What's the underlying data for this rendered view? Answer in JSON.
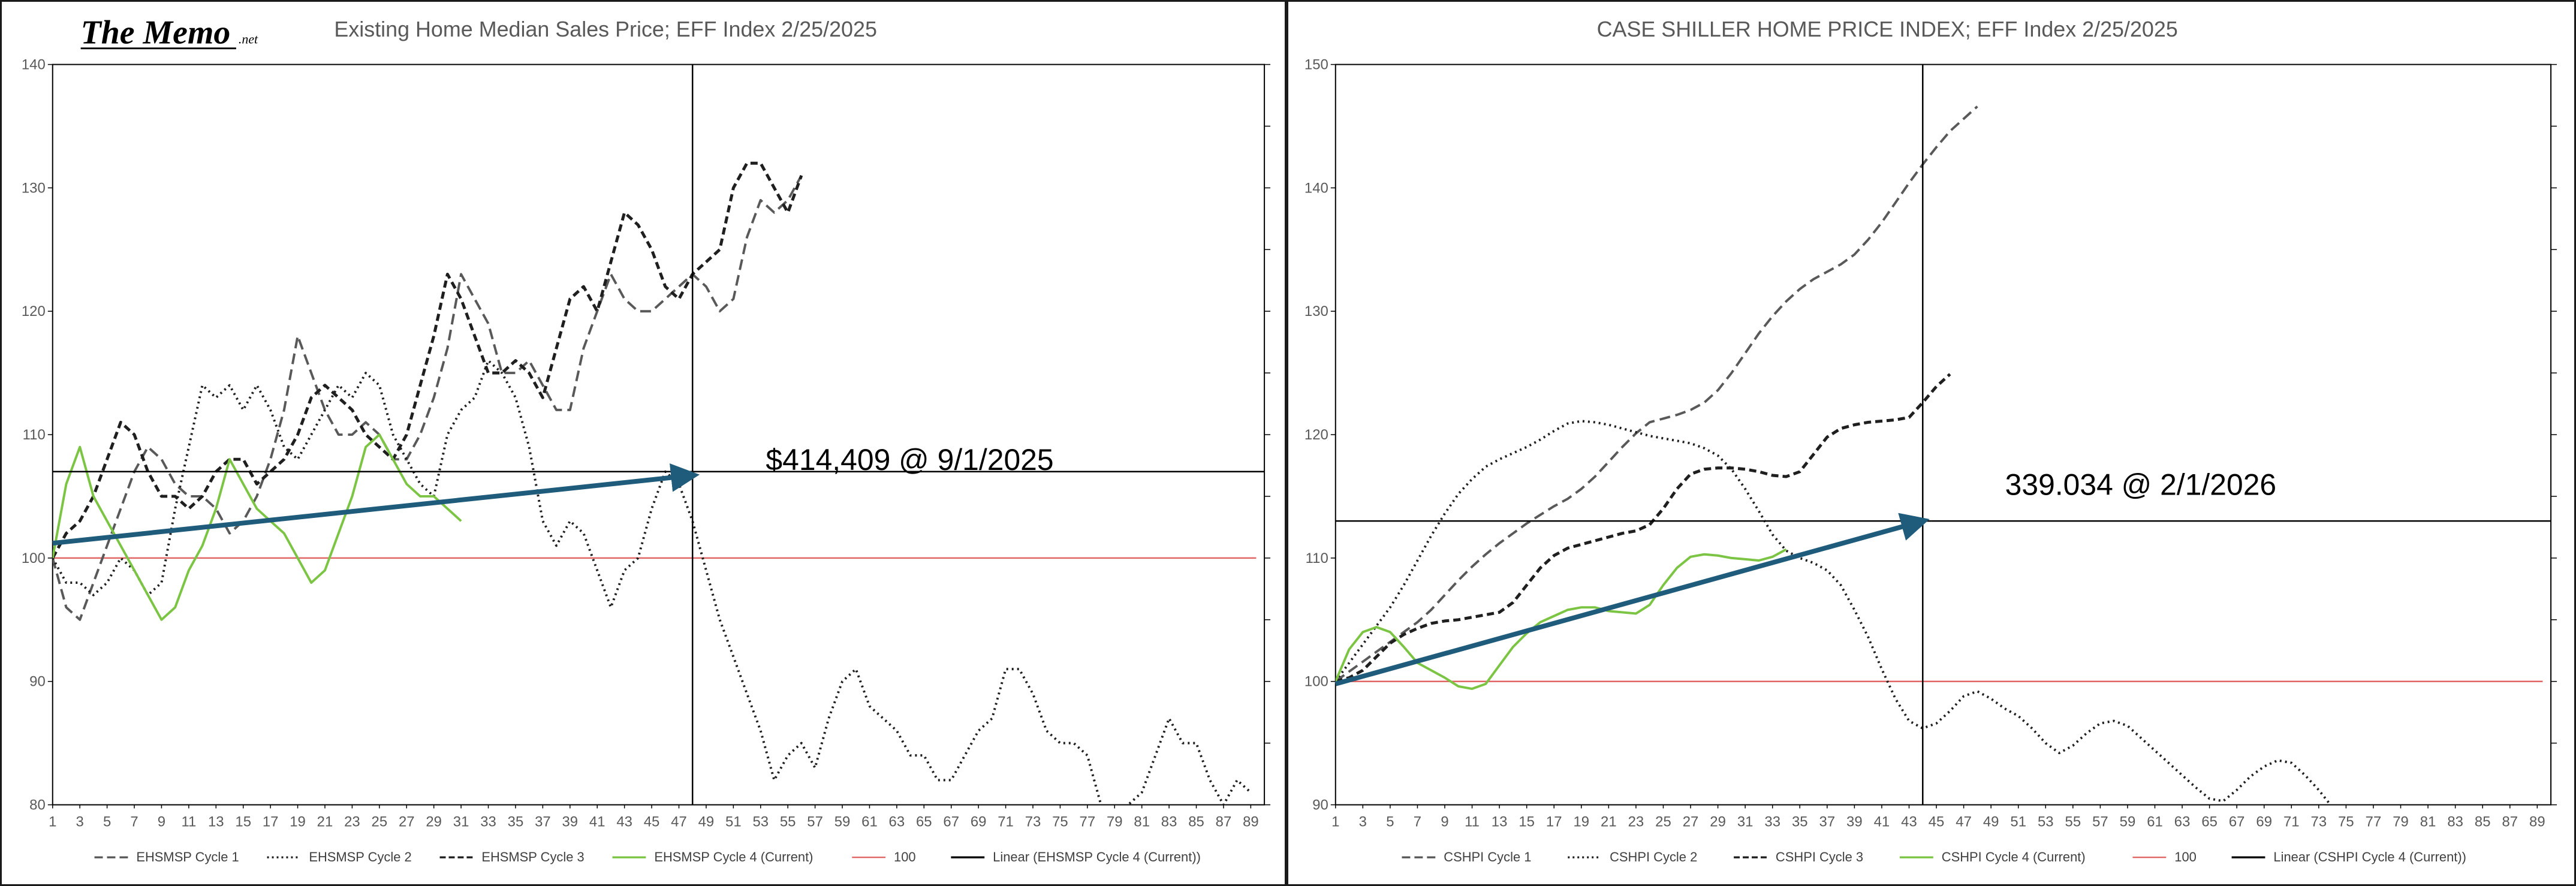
{
  "logo": {
    "main": "The Memo",
    "sub": ".net"
  },
  "colors": {
    "cycle_dark": "#595959",
    "cycle_black": "#1f1f1f",
    "current_green": "#7cc443",
    "baseline_red": "#e06666",
    "linear_black": "#000000",
    "arrow_blue": "#1f5b7a"
  },
  "chart_data": [
    {
      "type": "line",
      "title": "Existing Home Median Sales Price; EFF Index 2/25/2025",
      "xlabel": "",
      "ylabel": "",
      "xlim": [
        1,
        90
      ],
      "ylim": [
        80,
        140
      ],
      "xticks": [
        1,
        3,
        5,
        7,
        9,
        11,
        13,
        15,
        17,
        19,
        21,
        23,
        25,
        27,
        29,
        31,
        33,
        35,
        37,
        39,
        41,
        43,
        45,
        47,
        49,
        51,
        53,
        55,
        57,
        59,
        61,
        63,
        65,
        67,
        69,
        71,
        73,
        75,
        77,
        79,
        81,
        83,
        85,
        87,
        89
      ],
      "yticks": [
        80,
        90,
        100,
        110,
        120,
        130,
        140
      ],
      "grid": false,
      "legend_position": "bottom",
      "series": [
        {
          "name": "EHSMSP Cycle 1",
          "dash": "dashed",
          "values": [
            100,
            96,
            95,
            98,
            101,
            104,
            107,
            109,
            108,
            106,
            105,
            105,
            104,
            102,
            103,
            105,
            108,
            112,
            118,
            115,
            112,
            110,
            110,
            111,
            110,
            108,
            108,
            110,
            113,
            117,
            123,
            121,
            119,
            115,
            115,
            116,
            114,
            112,
            112,
            117,
            120,
            123,
            121,
            120,
            120,
            121,
            122,
            123,
            122,
            120,
            121,
            126,
            129,
            128,
            129,
            131
          ]
        },
        {
          "name": "EHSMSP Cycle 2",
          "dash": "dotted",
          "values": [
            100,
            98,
            98,
            97,
            98,
            100,
            99,
            97,
            98,
            104,
            109,
            114,
            113,
            114,
            112,
            114,
            112,
            109,
            108,
            110,
            112,
            114,
            113,
            115,
            114,
            110,
            108,
            106,
            105,
            110,
            112,
            113,
            116,
            115,
            113,
            109,
            103,
            101,
            103,
            102,
            99,
            96,
            99,
            100,
            104,
            107,
            106,
            103,
            99,
            95,
            92,
            89,
            86,
            82,
            84,
            85,
            83,
            87,
            90,
            91,
            88,
            87,
            86,
            84,
            84,
            82,
            82,
            84,
            86,
            87,
            91,
            91,
            89,
            86,
            85,
            85,
            84,
            80,
            79,
            80,
            81,
            84,
            87,
            85,
            85,
            82,
            80,
            82,
            81
          ]
        },
        {
          "name": "EHSMSP Cycle 3",
          "dash": "dashed",
          "values": [
            100,
            102,
            103,
            105,
            108,
            111,
            110,
            107,
            105,
            105,
            104,
            105,
            107,
            108,
            108,
            106,
            107,
            108,
            110,
            113,
            114,
            113,
            112,
            110,
            109,
            108,
            110,
            114,
            118,
            123,
            121,
            118,
            115,
            115,
            116,
            115,
            113,
            117,
            121,
            122,
            120,
            124,
            128,
            127,
            125,
            122,
            121,
            123,
            124,
            125,
            130,
            132,
            132,
            130,
            128,
            131
          ]
        },
        {
          "name": "EHSMSP Cycle 4 (Current)",
          "dash": "solid",
          "values": [
            100,
            106,
            109,
            105,
            103,
            101,
            99,
            97,
            95,
            96,
            99,
            101,
            104,
            108,
            106,
            104,
            103,
            102,
            100,
            98,
            99,
            102,
            105,
            109,
            110,
            108,
            106,
            105,
            105,
            104,
            103
          ]
        },
        {
          "name": "100",
          "dash": "solid",
          "values": [
            100,
            100
          ]
        },
        {
          "name": "Linear (EHSMSP Cycle 4 (Current))",
          "dash": "solid",
          "values": [
            107,
            107
          ]
        }
      ],
      "annotations": [
        {
          "text": "$414,409 @ 9/1/2025",
          "x": 48,
          "y": 107
        }
      ],
      "trend_arrow": {
        "from": [
          1,
          101.2
        ],
        "to": [
          48,
          106.7
        ]
      },
      "vline_x": 48,
      "hline_y": 107
    },
    {
      "type": "line",
      "title": "CASE SHILLER HOME PRICE INDEX; EFF Index 2/25/2025",
      "xlabel": "",
      "ylabel": "",
      "xlim": [
        1,
        90
      ],
      "ylim": [
        90,
        150
      ],
      "xticks": [
        1,
        3,
        5,
        7,
        9,
        11,
        13,
        15,
        17,
        19,
        21,
        23,
        25,
        27,
        29,
        31,
        33,
        35,
        37,
        39,
        41,
        43,
        45,
        47,
        49,
        51,
        53,
        55,
        57,
        59,
        61,
        63,
        65,
        67,
        69,
        71,
        73,
        75,
        77,
        79,
        81,
        83,
        85,
        87,
        89
      ],
      "yticks": [
        90,
        100,
        110,
        120,
        130,
        140,
        150
      ],
      "grid": false,
      "legend_position": "bottom",
      "series": [
        {
          "name": "CSHPI Cycle 1",
          "dash": "dashed",
          "values": [
            100,
            100.8,
            101.6,
            102.4,
            103.2,
            104,
            104.8,
            105.8,
            107,
            108.2,
            109.3,
            110.3,
            111.2,
            112,
            112.8,
            113.5,
            114.2,
            114.8,
            115.6,
            116.6,
            117.8,
            119,
            120.1,
            121,
            121.3,
            121.6,
            122,
            122.6,
            123.6,
            125,
            126.6,
            128.2,
            129.6,
            130.8,
            131.8,
            132.6,
            133.2,
            133.8,
            134.6,
            135.8,
            137.2,
            138.8,
            140.4,
            141.9,
            143.3,
            144.6,
            145.6,
            146.6
          ]
        },
        {
          "name": "CSHPI Cycle 2",
          "dash": "dotted",
          "values": [
            100,
            101.5,
            103,
            104.5,
            106,
            107.8,
            109.8,
            111.8,
            113.6,
            115.2,
            116.4,
            117.4,
            118,
            118.5,
            119,
            119.6,
            120.3,
            120.9,
            121.1,
            121,
            120.8,
            120.5,
            120.2,
            119.9,
            119.7,
            119.5,
            119.3,
            118.9,
            118.3,
            117.2,
            115.6,
            113.8,
            111.9,
            110.6,
            110,
            109.6,
            109,
            107.8,
            105.8,
            103.6,
            101,
            98.6,
            96.8,
            96.2,
            96.6,
            97.6,
            98.8,
            99.2,
            98.6,
            97.8,
            97.2,
            96.2,
            95,
            94.2,
            94.8,
            95.8,
            96.6,
            96.8,
            96.4,
            95.4,
            94.4,
            93.4,
            92.4,
            91.4,
            90.5,
            90.3,
            91.2,
            92.3,
            93.1,
            93.6,
            93.4,
            92.4,
            91.2,
            89.8
          ]
        },
        {
          "name": "CSHPI Cycle 3",
          "dash": "dashed",
          "values": [
            100,
            100.3,
            100.9,
            102,
            103.1,
            103.8,
            104.3,
            104.7,
            104.9,
            105,
            105.2,
            105.4,
            105.6,
            106.4,
            107.8,
            109.2,
            110.2,
            110.8,
            111.1,
            111.4,
            111.7,
            112,
            112.2,
            112.7,
            114,
            115.6,
            116.8,
            117.2,
            117.3,
            117.3,
            117.2,
            117,
            116.7,
            116.6,
            117,
            118.4,
            119.8,
            120.5,
            120.8,
            121,
            121.1,
            121.2,
            121.4,
            122.6,
            123.9,
            124.9
          ]
        },
        {
          "name": "CSHPI Cycle 4 (Current)",
          "dash": "solid",
          "values": [
            100,
            102.6,
            104,
            104.4,
            104,
            102.8,
            101.5,
            100.9,
            100.3,
            99.6,
            99.4,
            99.8,
            101.3,
            102.8,
            103.9,
            104.8,
            105.3,
            105.8,
            106,
            106,
            105.7,
            105.6,
            105.5,
            106.2,
            107.8,
            109.2,
            110.1,
            110.3,
            110.2,
            110,
            109.9,
            109.8,
            110.1,
            110.7
          ]
        },
        {
          "name": "100",
          "dash": "solid",
          "values": [
            100,
            100
          ]
        },
        {
          "name": "Linear (CSHPI Cycle 4 (Current))",
          "dash": "solid",
          "values": [
            113,
            113
          ]
        }
      ],
      "annotations": [
        {
          "text": "339.034 @ 2/1/2026",
          "x": 44,
          "y": 113
        }
      ],
      "trend_arrow": {
        "from": [
          1,
          99.8
        ],
        "to": [
          44,
          113
        ]
      },
      "vline_x": 44,
      "hline_y": 113
    }
  ]
}
